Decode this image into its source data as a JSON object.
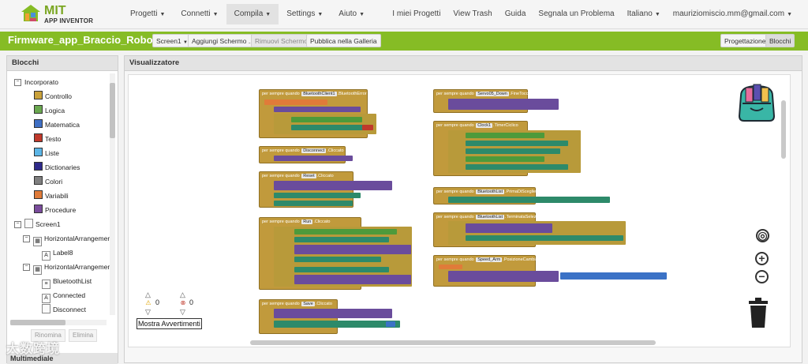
{
  "app": {
    "logo_line1": "MIT",
    "logo_line2": "APP INVENTOR",
    "brand_color": "#86bc25"
  },
  "nav": {
    "menus": [
      {
        "label": "Progetti"
      },
      {
        "label": "Connetti"
      },
      {
        "label": "Compila"
      },
      {
        "label": "Settings"
      },
      {
        "label": "Aiuto"
      }
    ],
    "right": [
      {
        "label": "I miei Progetti"
      },
      {
        "label": "View Trash"
      },
      {
        "label": "Guida"
      },
      {
        "label": "Segnala un Problema"
      },
      {
        "label": "Italiano"
      },
      {
        "label": "mauriziomiscio.mm@gmail.com"
      }
    ]
  },
  "project": {
    "title": "Firmware_app_Braccio_Robotico",
    "screen_select": "Screen1",
    "add_screen": "Aggiungi Schermo ...",
    "remove_screen": "Rimuovi Schermo",
    "publish": "Pubblica nella Galleria",
    "designer": "Progettazione",
    "blocks": "Blocchi"
  },
  "blocks_panel": {
    "title": "Blocchi",
    "builtin_label": "Incorporato",
    "builtin": [
      {
        "label": "Controllo",
        "color": "#c9a13a"
      },
      {
        "label": "Logica",
        "color": "#6aa84f"
      },
      {
        "label": "Matematica",
        "color": "#3f6fc4"
      },
      {
        "label": "Testo",
        "color": "#c0392b"
      },
      {
        "label": "Liste",
        "color": "#5bb5e6"
      },
      {
        "label": "Dictionaries",
        "color": "#2e2a8a"
      },
      {
        "label": "Colori",
        "color": "#7f7f7f"
      },
      {
        "label": "Variabili",
        "color": "#e07b39"
      },
      {
        "label": "Procedure",
        "color": "#7a4c9c"
      }
    ],
    "screen_label": "Screen1",
    "components": [
      {
        "label": "HorizontalArrangemen",
        "indent": 2,
        "toggle": "-"
      },
      {
        "label": "Label8",
        "indent": 3,
        "toggle": ""
      },
      {
        "label": "HorizontalArrangemen",
        "indent": 2,
        "toggle": "-"
      },
      {
        "label": "BluetoothList",
        "indent": 3,
        "toggle": ""
      },
      {
        "label": "Connected",
        "indent": 3,
        "toggle": ""
      },
      {
        "label": "Disconnect",
        "indent": 3,
        "toggle": ""
      }
    ],
    "rename": "Rinomina",
    "delete": "Elimina",
    "multimedia": "Multimediale"
  },
  "viewer": {
    "title": "Visualizzatore",
    "warnings_count": "0",
    "errors_count": "0",
    "show_warnings": "Mostra Avvertimenti"
  },
  "workspace_blocks": [
    {
      "header": "per sempre quando",
      "component": "BluetoothClient1",
      "event": "BluetoothError"
    },
    {
      "header": "per sempre quando",
      "component": "Disconnect",
      "event": "Cliccato"
    },
    {
      "header": "per sempre quando",
      "component": "Reset",
      "event": "Cliccato"
    },
    {
      "header": "per sempre quando",
      "component": "Run",
      "event": "Cliccato"
    },
    {
      "header": "per sempre quando",
      "component": "Save",
      "event": "Cliccato"
    },
    {
      "header": "per sempre quando",
      "component": "Servo05_Down",
      "event": "FineTocco"
    },
    {
      "header": "per sempre quando",
      "component": "Clock1",
      "event": "TimerCiclico"
    },
    {
      "header": "per sempre quando",
      "component": "BluetoothList",
      "event": "PrimaDiScegliere"
    },
    {
      "header": "per sempre quando",
      "component": "BluetoothList",
      "event": "TerminataSelezione"
    },
    {
      "header": "per sempre quando",
      "component": "Speed_Arm",
      "event": "PosizioneCambiata"
    }
  ],
  "watermark": "大数跨境"
}
